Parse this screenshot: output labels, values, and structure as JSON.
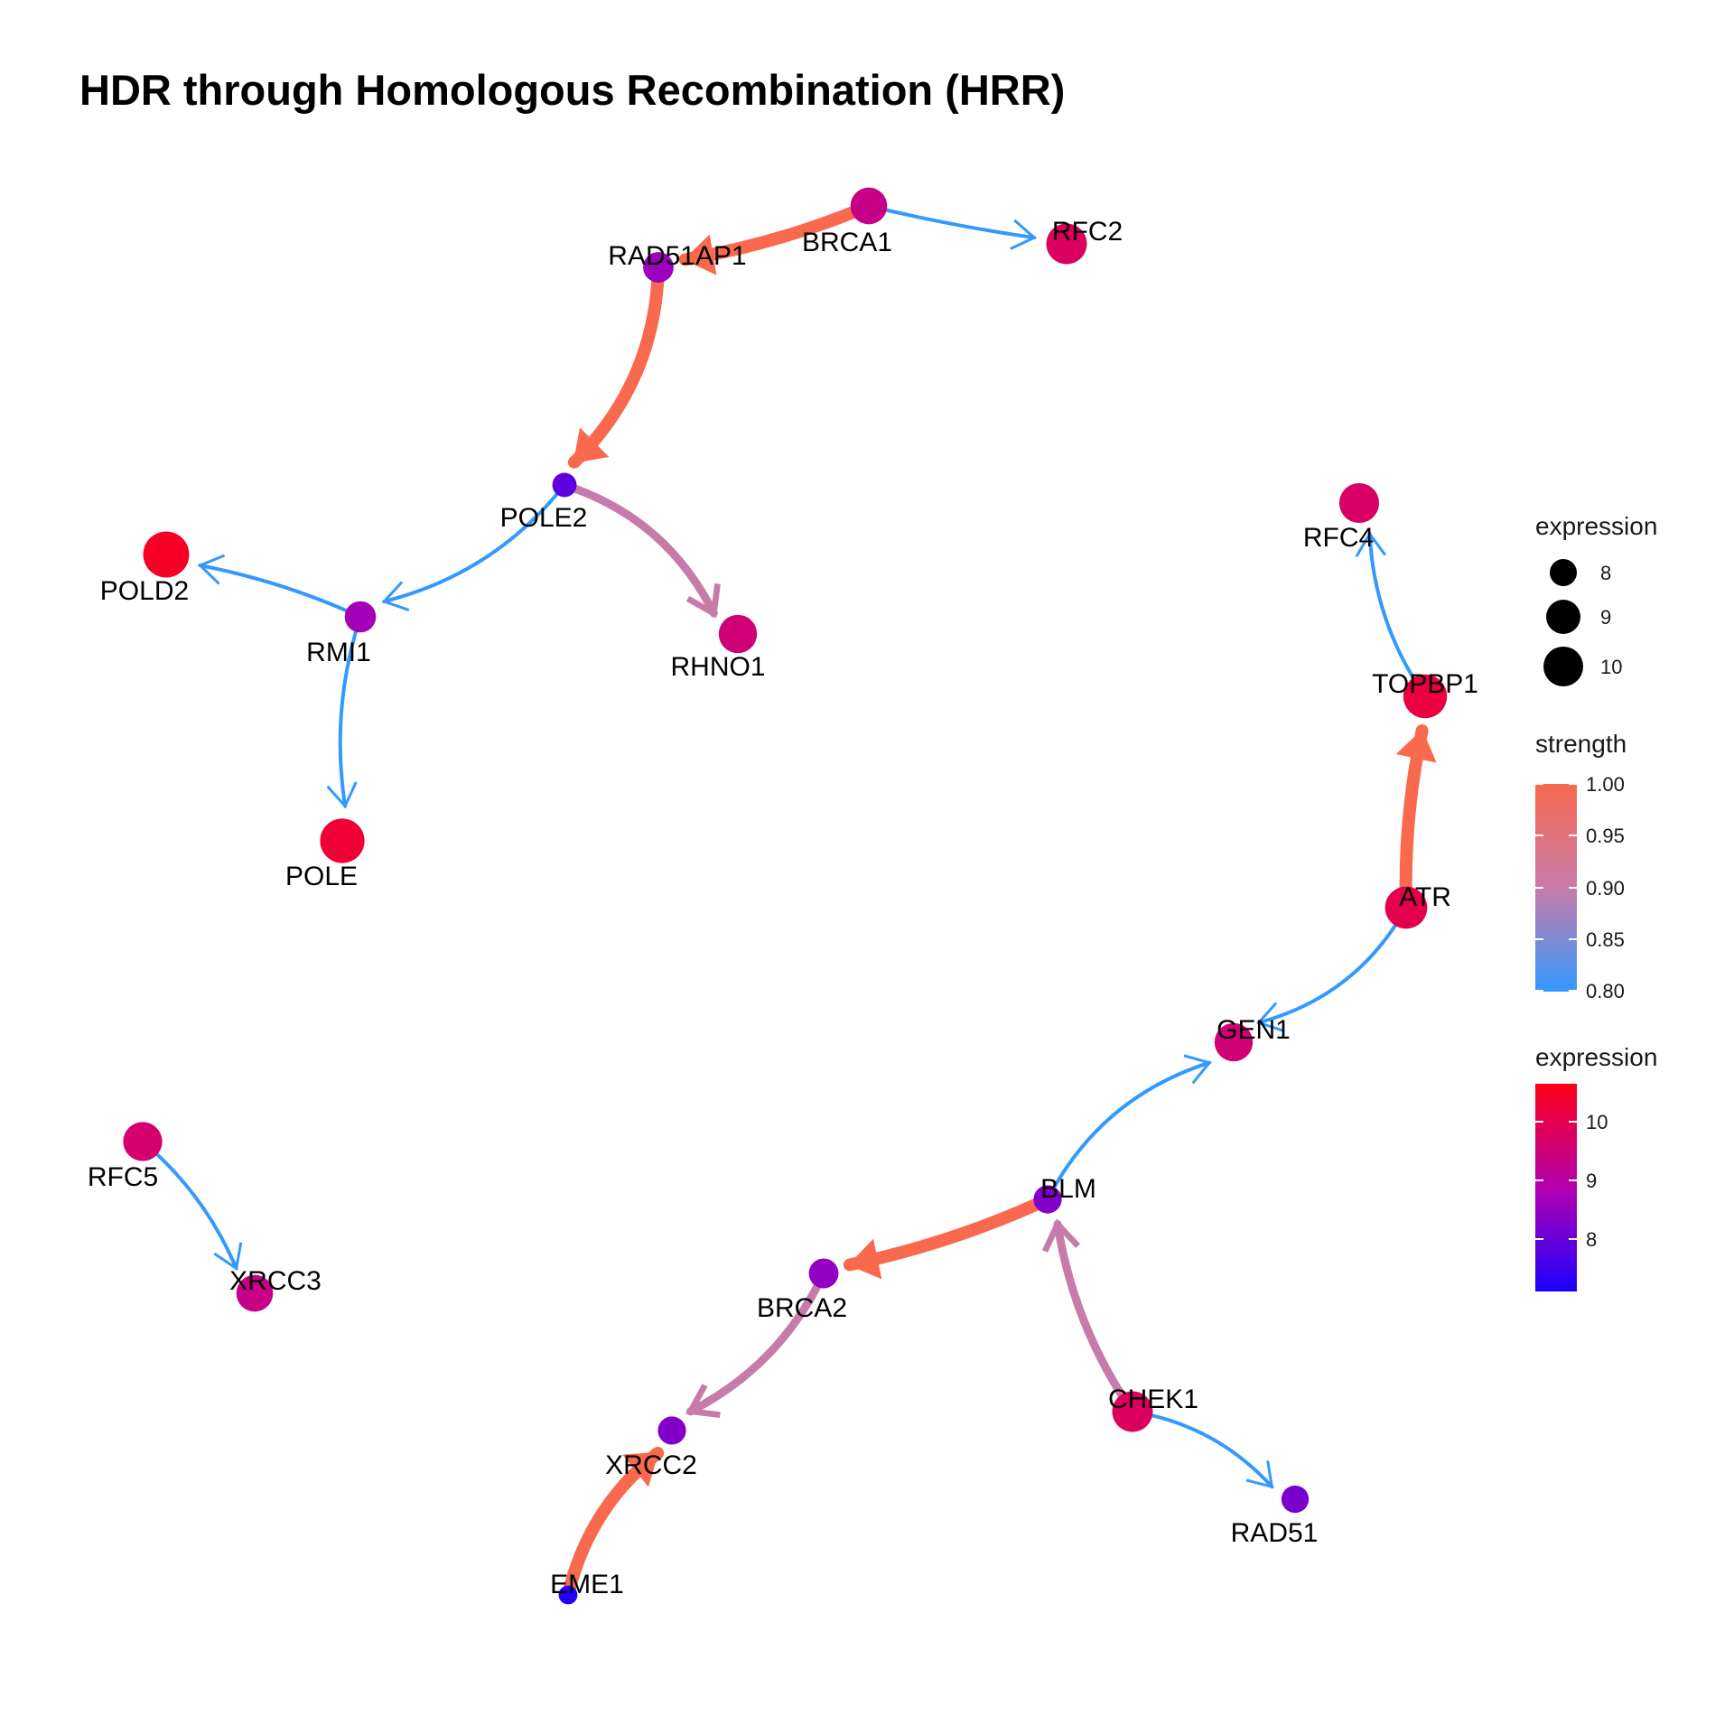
{
  "title": "HDR through Homologous Recombination (HRR)",
  "colors": {
    "strength_low": "#3399FF",
    "strength_mid": "#C77BA9",
    "strength_high": "#F8694E",
    "expression_low": "#1A00FF",
    "expression_mid": "#B400B0",
    "expression_high": "#FF0016"
  },
  "nodes": [
    {
      "id": "BRCA1",
      "label": "BRCA1",
      "expression": 9.4
    },
    {
      "id": "RAD51AP1",
      "label": "RAD51AP1",
      "expression": 8.6
    },
    {
      "id": "RFC2",
      "label": "RFC2",
      "expression": 9.9
    },
    {
      "id": "POLE2",
      "label": "POLE2",
      "expression": 7.8
    },
    {
      "id": "POLD2",
      "label": "POLD2",
      "expression": 10.6
    },
    {
      "id": "RMI1",
      "label": "RMI1",
      "expression": 8.7
    },
    {
      "id": "RHNO1",
      "label": "RHNO1",
      "expression": 9.6
    },
    {
      "id": "POLE",
      "label": "POLE",
      "expression": 10.4
    },
    {
      "id": "RFC4",
      "label": "RFC4",
      "expression": 9.8
    },
    {
      "id": "TOPBP1",
      "label": "TOPBP1",
      "expression": 10.3
    },
    {
      "id": "ATR",
      "label": "ATR",
      "expression": 10.1
    },
    {
      "id": "GEN1",
      "label": "GEN1",
      "expression": 9.6
    },
    {
      "id": "BLM",
      "label": "BLM",
      "expression": 8.3
    },
    {
      "id": "BRCA2",
      "label": "BRCA2",
      "expression": 8.5
    },
    {
      "id": "CHEK1",
      "label": "CHEK1",
      "expression": 9.9
    },
    {
      "id": "XRCC2",
      "label": "XRCC2",
      "expression": 8.3
    },
    {
      "id": "RAD51",
      "label": "RAD51",
      "expression": 8.2
    },
    {
      "id": "EME1",
      "label": "EME1",
      "expression": 7.1
    },
    {
      "id": "RFC5",
      "label": "RFC5",
      "expression": 9.7
    },
    {
      "id": "XRCC3",
      "label": "XRCC3",
      "expression": 9.4
    }
  ],
  "edges": [
    {
      "from": "BRCA1",
      "to": "RAD51AP1",
      "strength": 1.0
    },
    {
      "from": "BRCA1",
      "to": "RFC2",
      "strength": 0.8
    },
    {
      "from": "RAD51AP1",
      "to": "POLE2",
      "strength": 1.0
    },
    {
      "from": "POLE2",
      "to": "RMI1",
      "strength": 0.8
    },
    {
      "from": "POLE2",
      "to": "RHNO1",
      "strength": 0.9
    },
    {
      "from": "RMI1",
      "to": "POLD2",
      "strength": 0.8
    },
    {
      "from": "RMI1",
      "to": "POLE",
      "strength": 0.8
    },
    {
      "from": "TOPBP1",
      "to": "RFC4",
      "strength": 0.8
    },
    {
      "from": "ATR",
      "to": "TOPBP1",
      "strength": 1.0
    },
    {
      "from": "ATR",
      "to": "GEN1",
      "strength": 0.8
    },
    {
      "from": "BLM",
      "to": "GEN1",
      "strength": 0.8
    },
    {
      "from": "BLM",
      "to": "BRCA2",
      "strength": 1.0
    },
    {
      "from": "CHEK1",
      "to": "BLM",
      "strength": 0.9
    },
    {
      "from": "CHEK1",
      "to": "RAD51",
      "strength": 0.8
    },
    {
      "from": "BRCA2",
      "to": "XRCC2",
      "strength": 0.9
    },
    {
      "from": "EME1",
      "to": "XRCC2",
      "strength": 1.0
    },
    {
      "from": "RFC5",
      "to": "XRCC3",
      "strength": 0.8
    }
  ],
  "legend": {
    "size": {
      "title": "expression",
      "ticks": [
        "8",
        "9",
        "10"
      ]
    },
    "strength": {
      "title": "strength",
      "ticks": [
        "1.00",
        "0.95",
        "0.90",
        "0.85",
        "0.80"
      ]
    },
    "expression": {
      "title": "expression",
      "ticks": [
        "10",
        "9",
        "8"
      ]
    }
  }
}
